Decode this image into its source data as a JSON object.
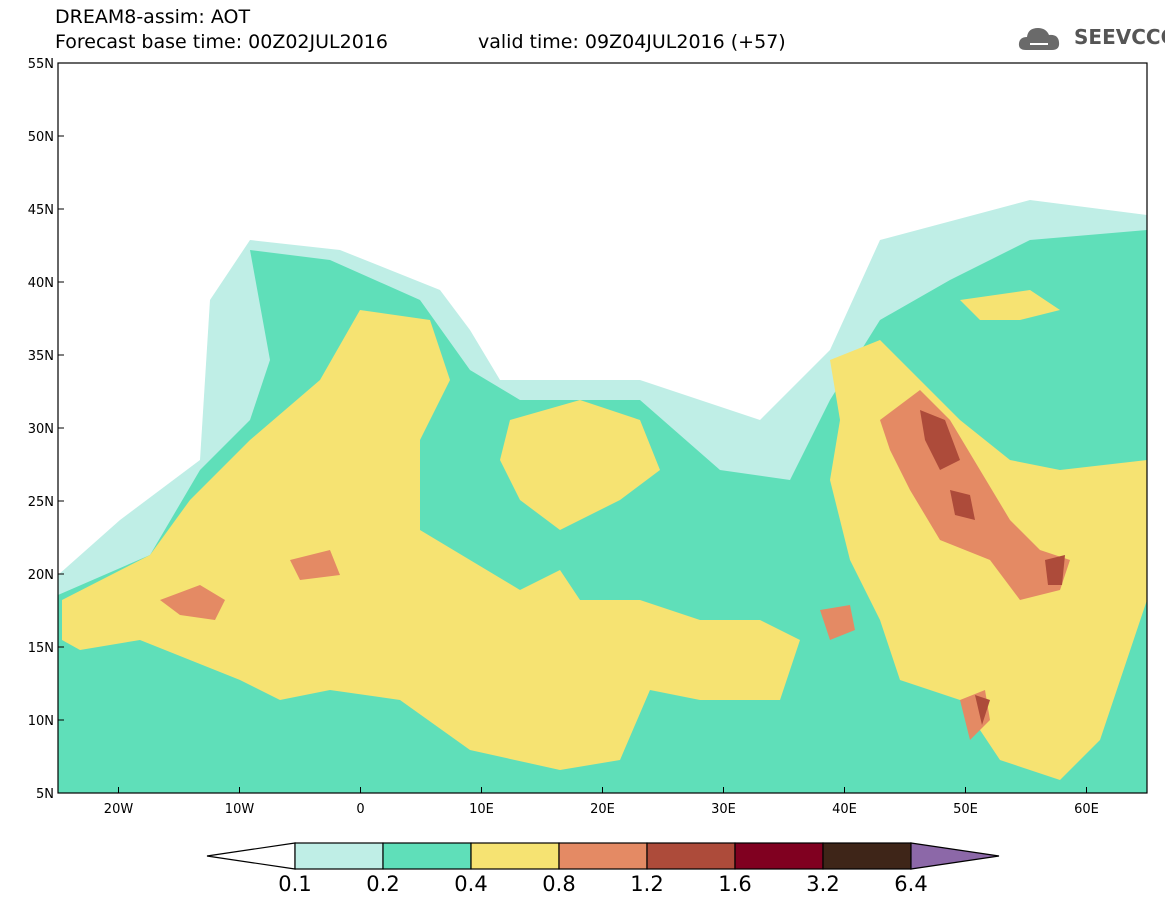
{
  "header": {
    "title": "DREAM8-assim: AOT",
    "base_time": "Forecast base time: 00Z02JUL2016",
    "valid_time": "valid time: 09Z04JUL2016 (+57)",
    "logo_text": "SEEVCCC"
  },
  "map": {
    "lat_labels": [
      "55N",
      "50N",
      "45N",
      "40N",
      "35N",
      "30N",
      "25N",
      "20N",
      "15N",
      "10N",
      "5N"
    ],
    "lat_values": [
      55,
      50,
      45,
      40,
      35,
      30,
      25,
      20,
      15,
      10,
      5
    ],
    "lon_labels": [
      "20W",
      "10W",
      "0",
      "10E",
      "20E",
      "30E",
      "40E",
      "50E",
      "60E"
    ],
    "lon_values": [
      -20,
      -10,
      0,
      10,
      20,
      30,
      40,
      50,
      60
    ],
    "lon_range": [
      -25,
      65
    ],
    "lat_range": [
      5,
      55
    ]
  },
  "colorbar": {
    "labels": [
      "0.1",
      "0.2",
      "0.4",
      "0.8",
      "1.2",
      "1.6",
      "3.2",
      "6.4"
    ],
    "colors": [
      "#ffffff",
      "#bfeee6",
      "#5fdfb9",
      "#f6e372",
      "#e48a64",
      "#ad4b3a",
      "#800020",
      "#3e2518",
      "#8c68a8"
    ]
  }
}
